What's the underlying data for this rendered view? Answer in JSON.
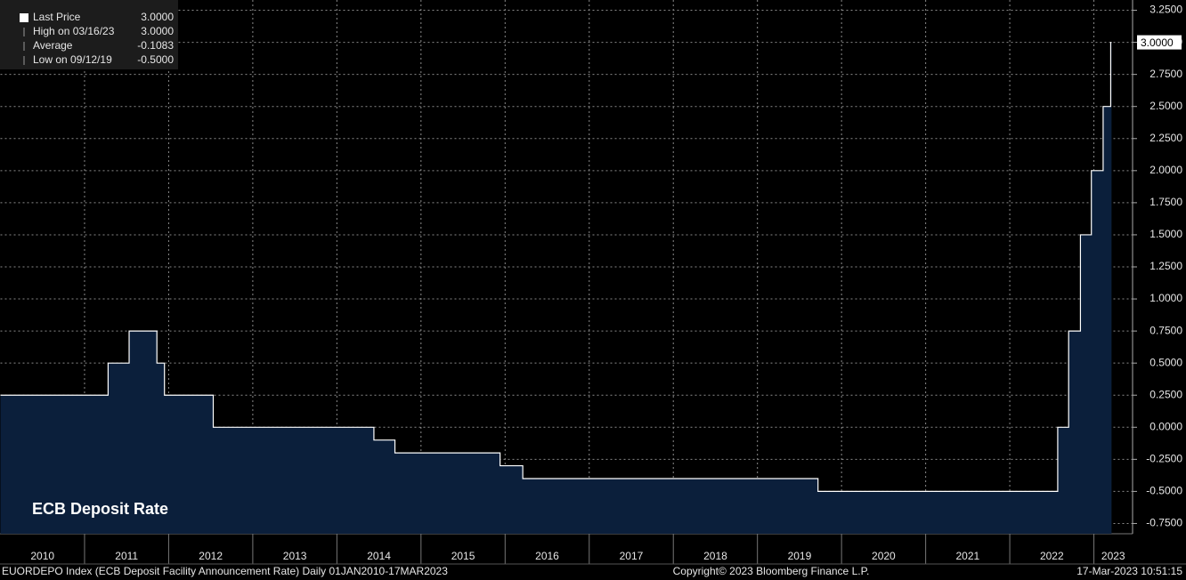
{
  "chart_data": {
    "type": "step-area",
    "annotation": "ECB Deposit Rate",
    "x": [
      2010,
      2011.28,
      2011.53,
      2011.86,
      2011.95,
      2012.53,
      2014.44,
      2014.69,
      2015.94,
      2016.21,
      2019.72,
      2022.57,
      2022.7,
      2022.84,
      2022.97,
      2023.11,
      2023.2,
      2023.21
    ],
    "series": [
      {
        "name": "Last Price",
        "color": "#ffffff",
        "fill": "#0b1f3b",
        "values": [
          0.25,
          0.5,
          0.75,
          0.5,
          0.25,
          0,
          -0.1,
          -0.2,
          -0.3,
          -0.4,
          -0.5,
          0,
          0.75,
          1.5,
          2.0,
          2.5,
          3.0,
          3.0
        ]
      }
    ],
    "xlim": [
      2010,
      2023.46
    ],
    "xticks": [
      2010,
      2011,
      2012,
      2013,
      2014,
      2015,
      2016,
      2017,
      2018,
      2019,
      2020,
      2021,
      2022,
      2023
    ],
    "ylim": [
      -0.83,
      3.33
    ],
    "yticks": [
      {
        "value": 3.25,
        "label": "3.2500"
      },
      {
        "value": 3.0,
        "label": "3.0000"
      },
      {
        "value": 2.75,
        "label": "2.7500"
      },
      {
        "value": 2.5,
        "label": "2.5000"
      },
      {
        "value": 2.25,
        "label": "2.2500"
      },
      {
        "value": 2.0,
        "label": "2.0000"
      },
      {
        "value": 1.75,
        "label": "1.7500"
      },
      {
        "value": 1.5,
        "label": "1.5000"
      },
      {
        "value": 1.25,
        "label": "1.2500"
      },
      {
        "value": 1.0,
        "label": "1.0000"
      },
      {
        "value": 0.75,
        "label": "0.7500"
      },
      {
        "value": 0.5,
        "label": "0.5000"
      },
      {
        "value": 0.25,
        "label": "0.2500"
      },
      {
        "value": 0,
        "label": "0.0000"
      },
      {
        "value": -0.25,
        "label": "-0.2500"
      },
      {
        "value": -0.5,
        "label": "-0.5000"
      },
      {
        "value": -0.75,
        "label": "-0.7500"
      }
    ],
    "grid": true,
    "last_price": {
      "value": 3.0,
      "label": "3.0000"
    },
    "legend": [
      [
        "Last Price",
        "3.0000"
      ],
      [
        "High on 03/16/23",
        "3.0000"
      ],
      [
        "Average",
        "-0.1083"
      ],
      [
        "Low on 09/12/19",
        "-0.5000"
      ]
    ],
    "footer": {
      "left": "EUORDEPO Index (ECB Deposit Facility Announcement Rate)  Daily 01JAN2010-17MAR2023",
      "center": "Copyright© 2023 Bloomberg Finance L.P.",
      "right": "17-Mar-2023  10:51:15"
    }
  }
}
